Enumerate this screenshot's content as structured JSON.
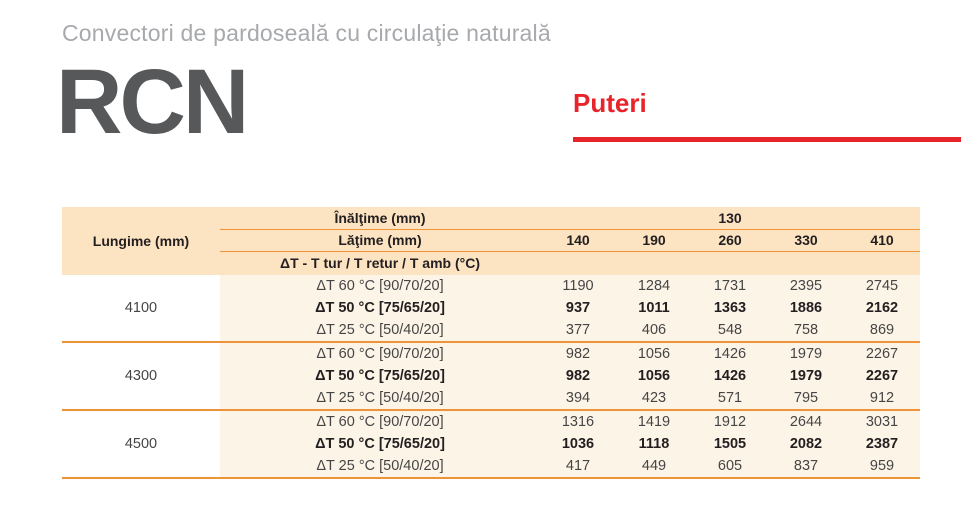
{
  "page": {
    "category_title": "Convectori de pardoseală cu circulaţie naturală",
    "product_name": "RCN",
    "section_title": "Puteri"
  },
  "table": {
    "corner_header": "Lungime (mm)",
    "row_headers": {
      "height_label": "Înălţime (mm)",
      "width_label": "Lăţime (mm)",
      "dt_label": "ΔT - T tur / T retur / T amb (°C)"
    },
    "height_value": "130",
    "width_columns": [
      "140",
      "190",
      "260",
      "330",
      "410"
    ],
    "dt_rows": [
      "ΔT 60 °C [90/70/20]",
      "ΔT 50 °C [75/65/20]",
      "ΔT 25 °C [50/40/20]"
    ],
    "groups": [
      {
        "length": "4100",
        "rows": [
          [
            1190,
            1284,
            1731,
            2395,
            2745
          ],
          [
            937,
            1011,
            1363,
            1886,
            2162
          ],
          [
            377,
            406,
            548,
            758,
            869
          ]
        ]
      },
      {
        "length": "4300",
        "rows": [
          [
            982,
            1056,
            1426,
            1979,
            2267
          ],
          [
            982,
            1056,
            1426,
            1979,
            2267
          ],
          [
            394,
            423,
            571,
            795,
            912
          ]
        ]
      },
      {
        "length": "4500",
        "rows": [
          [
            1316,
            1419,
            1912,
            2644,
            3031
          ],
          [
            1036,
            1118,
            1505,
            2082,
            2387
          ],
          [
            417,
            449,
            605,
            837,
            959
          ]
        ]
      }
    ]
  },
  "colors": {
    "accent_red": "#e8242b",
    "header_bg": "#fce3c1",
    "row_bg": "#fdf4e8",
    "line_orange": "#ef9339",
    "title_gray": "#a7a9ac",
    "product_gray": "#57585a",
    "text_dark": "#454545",
    "text_black": "#231f20"
  }
}
